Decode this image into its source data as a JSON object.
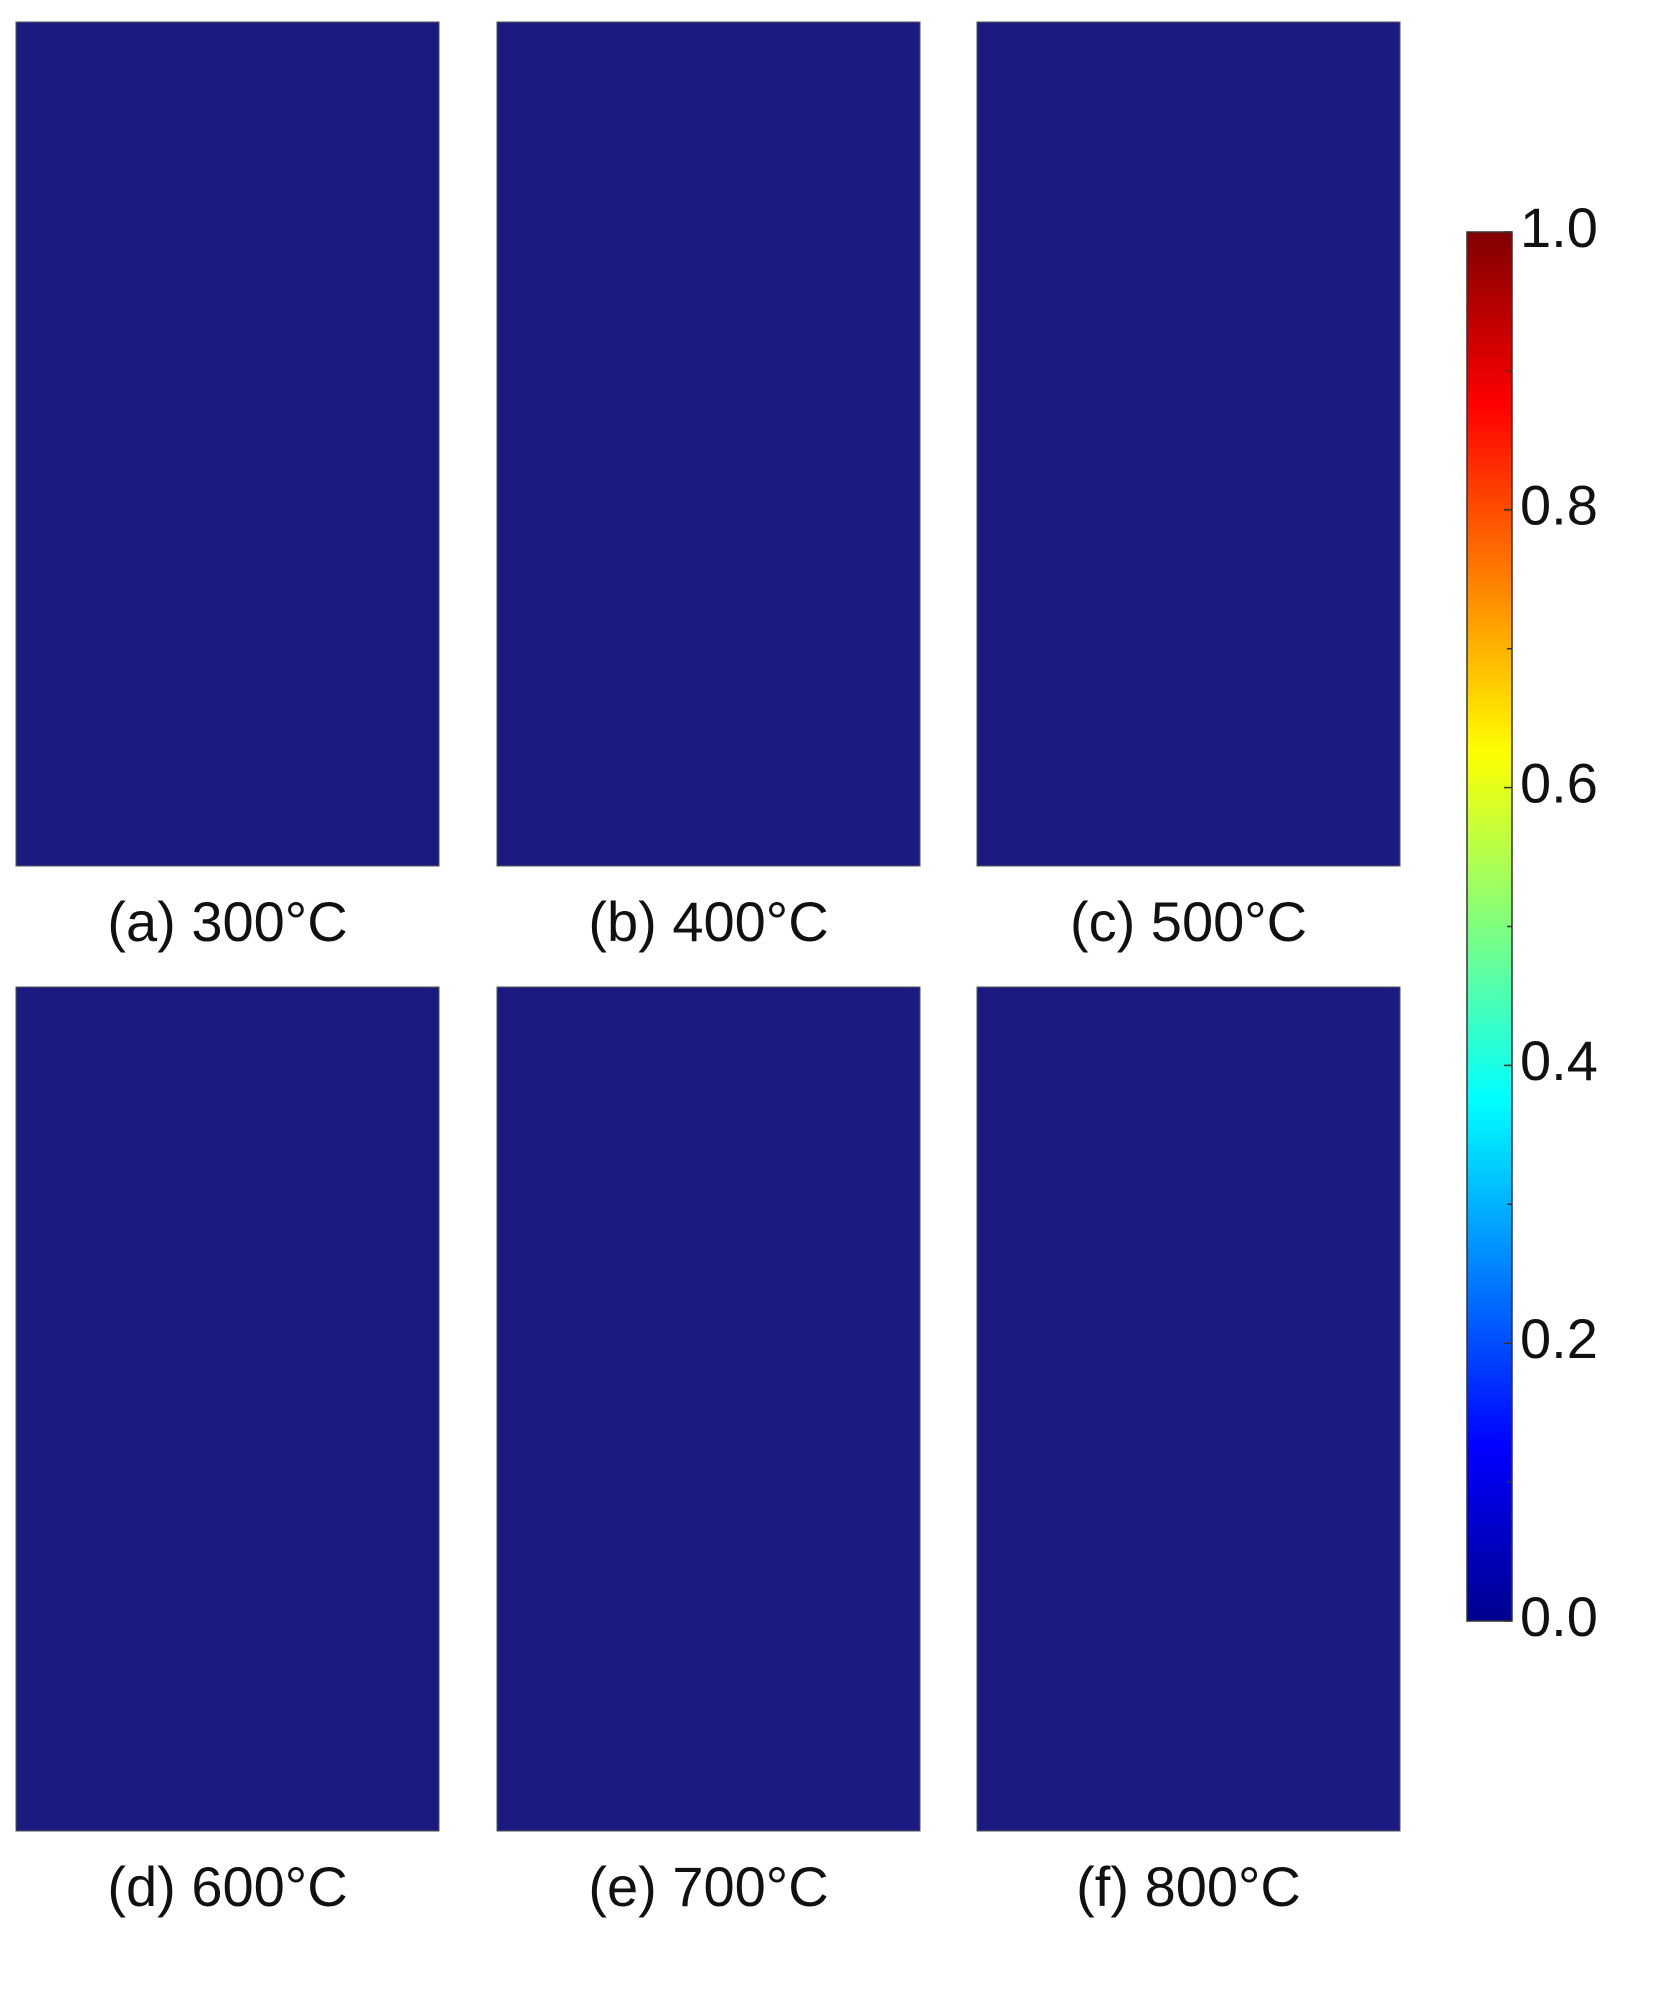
{
  "chart_data": {
    "type": "heatmap",
    "panels": [
      {
        "label": "(a) 300°C"
      },
      {
        "label": "(b) 400°C"
      },
      {
        "label": "(c) 500°C"
      },
      {
        "label": "(d) 600°C"
      },
      {
        "label": "(e) 700°C"
      },
      {
        "label": "(f) 800°C"
      }
    ],
    "colorbar": {
      "lim": [
        0,
        1
      ],
      "ticks": [
        {
          "value": 0,
          "label": "0.0"
        },
        {
          "value": 0.2,
          "label": "0.2"
        },
        {
          "value": 0.4,
          "label": "0.4"
        },
        {
          "value": 0.6,
          "label": "0.6"
        },
        {
          "value": 0.8,
          "label": "0.8"
        },
        {
          "value": 1,
          "label": "1.0"
        }
      ],
      "minor_ticks": [
        0.1,
        0.3,
        0.5,
        0.7,
        0.9
      ]
    }
  }
}
